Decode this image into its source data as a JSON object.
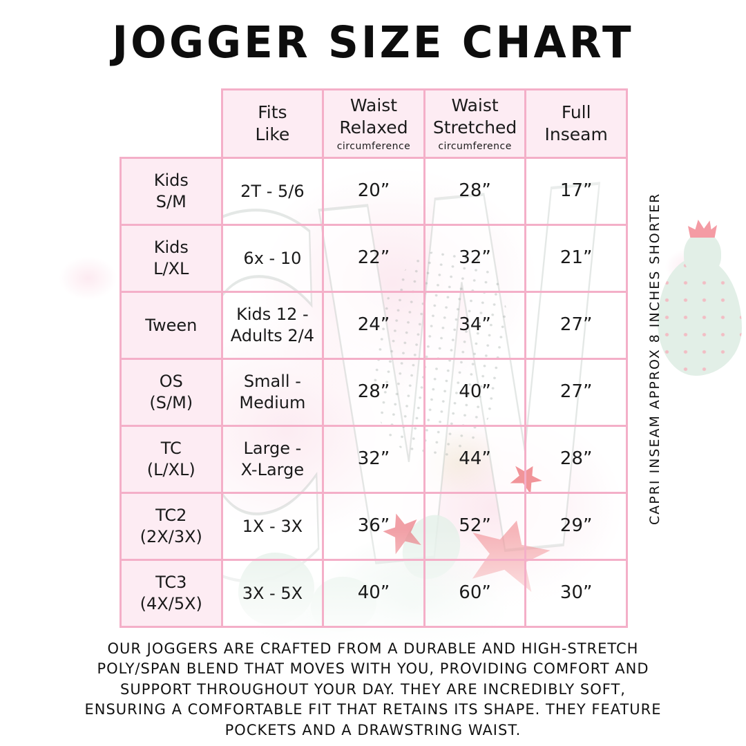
{
  "title": "JOGGER SIZE CHART",
  "watermark_text": "CW",
  "side_note": "CAPRI INSEAM APPROX 8 INCHES SHORTER",
  "description": "OUR JOGGERS ARE CRAFTED FROM A DURABLE AND HIGH-STRETCH\nPOLY/SPAN BLEND THAT MOVES WITH YOU, PROVIDING COMFORT AND\nSUPPORT THROUGHOUT YOUR DAY. THEY ARE INCREDIBLY SOFT,\nENSURING A COMFORTABLE FIT THAT RETAINS ITS SHAPE. THEY FEATURE\nPOCKETS AND A DRAWSTRING WAIST.",
  "table": {
    "headers": [
      {
        "title": "Fits\nLike",
        "sub": ""
      },
      {
        "title": "Waist\nRelaxed",
        "sub": "circumference"
      },
      {
        "title": "Waist\nStretched",
        "sub": "circumference"
      },
      {
        "title": "Full\nInseam",
        "sub": ""
      }
    ],
    "rows": [
      {
        "label": "Kids\nS/M",
        "fits": "2T - 5/6",
        "waist_relaxed": "20”",
        "waist_stretched": "28”",
        "full_inseam": "17”"
      },
      {
        "label": "Kids\nL/XL",
        "fits": "6x - 10",
        "waist_relaxed": "22”",
        "waist_stretched": "32”",
        "full_inseam": "21”"
      },
      {
        "label": "Tween",
        "fits": "Kids 12 -\nAdults 2/4",
        "waist_relaxed": "24”",
        "waist_stretched": "34”",
        "full_inseam": "27”"
      },
      {
        "label": "OS\n(S/M)",
        "fits": "Small -\nMedium",
        "waist_relaxed": "28”",
        "waist_stretched": "40”",
        "full_inseam": "27”"
      },
      {
        "label": "TC\n(L/XL)",
        "fits": "Large -\nX-Large",
        "waist_relaxed": "32”",
        "waist_stretched": "44”",
        "full_inseam": "28”"
      },
      {
        "label": "TC2\n(2X/3X)",
        "fits": "1X - 3X",
        "waist_relaxed": "36”",
        "waist_stretched": "52”",
        "full_inseam": "29”"
      },
      {
        "label": "TC3\n(4X/5X)",
        "fits": "3X - 5X",
        "waist_relaxed": "40”",
        "waist_stretched": "60”",
        "full_inseam": "30”"
      }
    ]
  },
  "chart_data": {
    "type": "table",
    "title": "JOGGER SIZE CHART",
    "columns": [
      "",
      "Fits Like",
      "Waist Relaxed circumference",
      "Waist Stretched circumference",
      "Full Inseam"
    ],
    "rows": [
      [
        "Kids S/M",
        "2T - 5/6",
        "20”",
        "28”",
        "17”"
      ],
      [
        "Kids L/XL",
        "6x - 10",
        "22”",
        "32”",
        "21”"
      ],
      [
        "Tween",
        "Kids 12 - Adults 2/4",
        "24”",
        "34”",
        "27”"
      ],
      [
        "OS (S/M)",
        "Small - Medium",
        "28”",
        "40”",
        "27”"
      ],
      [
        "TC (L/XL)",
        "Large - X-Large",
        "32”",
        "44”",
        "28”"
      ],
      [
        "TC2 (2X/3X)",
        "1X - 3X",
        "36”",
        "52”",
        "29”"
      ],
      [
        "TC3 (4X/5X)",
        "3X - 5X",
        "40”",
        "60”",
        "30”"
      ]
    ],
    "annotations": [
      "CAPRI INSEAM APPROX 8 INCHES SHORTER"
    ]
  },
  "colors": {
    "table_border": "#f4afc8",
    "cell_fill": "#fdecf3",
    "text": "#1a1a1a",
    "coral_flower": "#ef7b81",
    "mint_accent": "#e3f0e8",
    "pink_wash": "#fadce7"
  }
}
